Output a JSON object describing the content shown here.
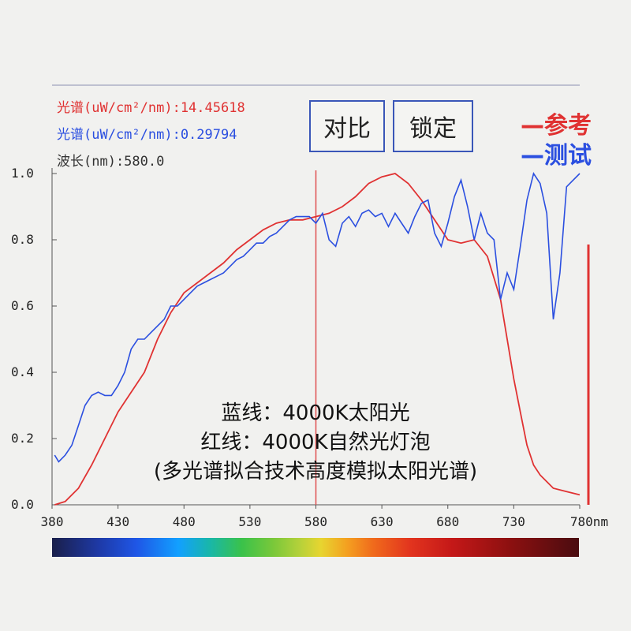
{
  "readouts": {
    "ref": "光谱(uW/cm²/nm):14.45618",
    "test": "光谱(uW/cm²/nm):0.29794",
    "wavelength": "波长(nm):580.0"
  },
  "buttons": {
    "compare": "对比",
    "lock": "锁定"
  },
  "legend": {
    "reference": "—参考",
    "test": "—测试"
  },
  "annotation": {
    "line1": "蓝线：4000K太阳光",
    "line2": "红线：4000K自然光灯泡",
    "line3": "(多光谱拟合技术高度模拟太阳光谱)"
  },
  "colors": {
    "reference": "#e03232",
    "test": "#2b4fe0",
    "cursor": "#e05050",
    "frame": "#8a8fb0"
  },
  "chart_data": {
    "type": "line",
    "xlabel": "nm",
    "xlim": [
      380,
      780
    ],
    "ylim": [
      0,
      1.0
    ],
    "xticks": [
      "380",
      "430",
      "480",
      "530",
      "580",
      "630",
      "680",
      "730",
      "780nm"
    ],
    "xtick_values": [
      380,
      430,
      480,
      530,
      580,
      630,
      680,
      730,
      780
    ],
    "yticks": [
      "0.0",
      "0.2",
      "0.4",
      "0.6",
      "0.8",
      "1.0"
    ],
    "ytick_values": [
      0,
      0.2,
      0.4,
      0.6,
      0.8,
      1.0
    ],
    "cursor_x": 580,
    "series": [
      {
        "name": "参考",
        "color": "#e03232",
        "x": [
          382,
          390,
          400,
          410,
          420,
          430,
          440,
          450,
          460,
          470,
          480,
          490,
          500,
          510,
          520,
          530,
          540,
          550,
          560,
          570,
          580,
          590,
          600,
          610,
          620,
          630,
          640,
          650,
          660,
          670,
          680,
          690,
          700,
          710,
          720,
          725,
          730,
          735,
          740,
          745,
          750,
          755,
          760,
          770,
          780
        ],
        "y": [
          0.0,
          0.01,
          0.05,
          0.12,
          0.2,
          0.28,
          0.34,
          0.4,
          0.5,
          0.58,
          0.64,
          0.67,
          0.7,
          0.73,
          0.77,
          0.8,
          0.83,
          0.85,
          0.86,
          0.86,
          0.87,
          0.88,
          0.9,
          0.93,
          0.97,
          0.99,
          1.0,
          0.97,
          0.92,
          0.86,
          0.8,
          0.79,
          0.8,
          0.75,
          0.62,
          0.5,
          0.38,
          0.28,
          0.18,
          0.12,
          0.09,
          0.07,
          0.05,
          0.04,
          0.03
        ]
      },
      {
        "name": "测试",
        "color": "#2b4fe0",
        "x": [
          382,
          385,
          390,
          395,
          400,
          405,
          410,
          415,
          420,
          425,
          430,
          435,
          440,
          445,
          450,
          455,
          460,
          465,
          470,
          475,
          480,
          485,
          490,
          495,
          500,
          505,
          510,
          515,
          520,
          525,
          530,
          535,
          540,
          545,
          550,
          555,
          560,
          565,
          570,
          575,
          580,
          585,
          590,
          595,
          600,
          605,
          610,
          615,
          620,
          625,
          630,
          635,
          640,
          645,
          650,
          655,
          660,
          665,
          670,
          675,
          680,
          685,
          690,
          695,
          700,
          705,
          710,
          715,
          720,
          725,
          730,
          735,
          740,
          745,
          750,
          755,
          760,
          765,
          770,
          775,
          780
        ],
        "y": [
          0.15,
          0.13,
          0.15,
          0.18,
          0.24,
          0.3,
          0.33,
          0.34,
          0.33,
          0.33,
          0.36,
          0.4,
          0.47,
          0.5,
          0.5,
          0.52,
          0.54,
          0.56,
          0.6,
          0.6,
          0.62,
          0.64,
          0.66,
          0.67,
          0.68,
          0.69,
          0.7,
          0.72,
          0.74,
          0.75,
          0.77,
          0.79,
          0.79,
          0.81,
          0.82,
          0.84,
          0.86,
          0.87,
          0.87,
          0.87,
          0.85,
          0.88,
          0.8,
          0.78,
          0.85,
          0.87,
          0.84,
          0.88,
          0.89,
          0.87,
          0.88,
          0.84,
          0.88,
          0.85,
          0.82,
          0.87,
          0.91,
          0.92,
          0.82,
          0.78,
          0.85,
          0.93,
          0.98,
          0.9,
          0.8,
          0.88,
          0.82,
          0.8,
          0.62,
          0.7,
          0.65,
          0.78,
          0.92,
          1.0,
          0.97,
          0.88,
          0.56,
          0.7,
          0.96,
          0.98,
          1.0
        ]
      }
    ]
  }
}
